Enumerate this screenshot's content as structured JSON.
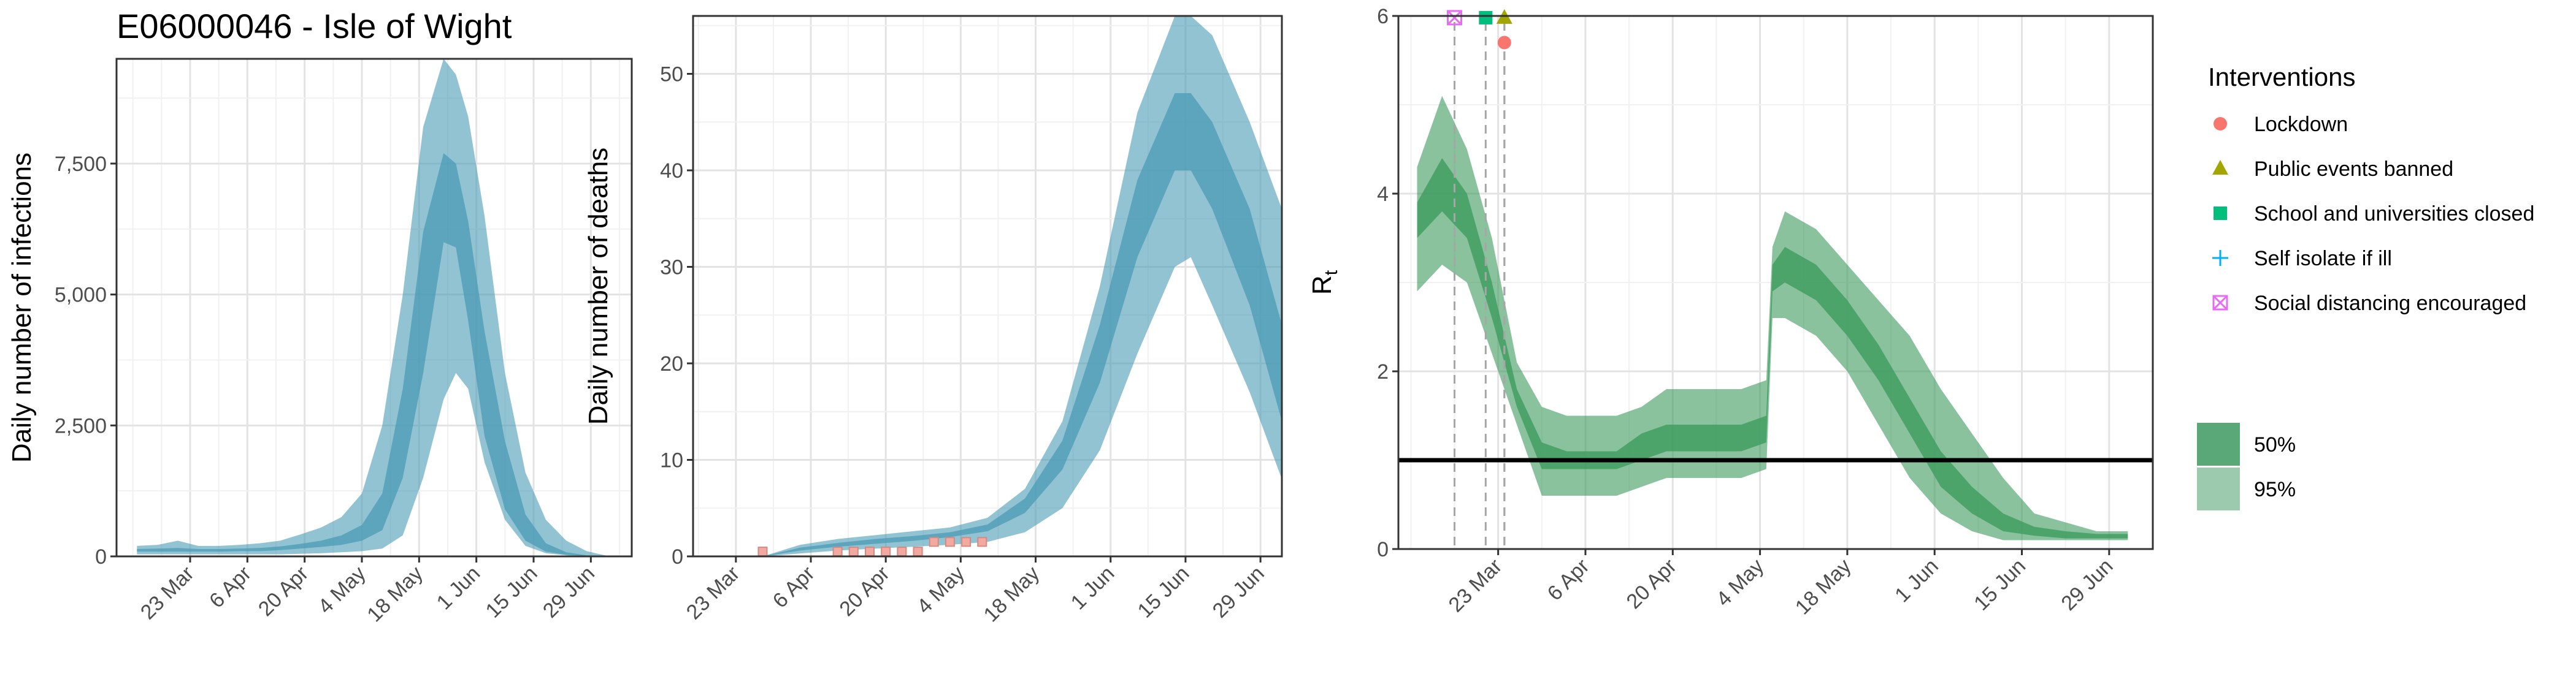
{
  "title": "E06000046 - Isle of Wight",
  "colors": {
    "band_infections": "#4a9bb5",
    "band_r": "#3a9a5b",
    "lockdown": "#f8766d",
    "public_events": "#a3a500",
    "school": "#00bf7d",
    "self_isolate": "#00b0f6",
    "social_distancing": "#e76bf3"
  },
  "chart_data": [
    {
      "type": "area",
      "ylabel": "Daily number of infections",
      "x_ticks": [
        "23 Mar",
        "6 Apr",
        "20 Apr",
        "4 May",
        "18 May",
        "1 Jun",
        "15 Jun",
        "29 Jun"
      ],
      "y_ticks": [
        "0",
        "2,500",
        "5,000",
        "7,500"
      ],
      "ylim": [
        0,
        9500
      ],
      "grid": true,
      "x": [
        "2020-03-10",
        "2020-03-15",
        "2020-03-20",
        "2020-03-25",
        "2020-03-30",
        "2020-04-04",
        "2020-04-09",
        "2020-04-14",
        "2020-04-19",
        "2020-04-24",
        "2020-04-29",
        "2020-05-04",
        "2020-05-09",
        "2020-05-14",
        "2020-05-19",
        "2020-05-24",
        "2020-05-27",
        "2020-05-30",
        "2020-06-03",
        "2020-06-08",
        "2020-06-13",
        "2020-06-18",
        "2020-06-23",
        "2020-06-28",
        "2020-07-03"
      ],
      "series": [
        {
          "interval": "95%",
          "lower": [
            40,
            40,
            40,
            40,
            40,
            40,
            40,
            40,
            50,
            60,
            80,
            100,
            150,
            400,
            1500,
            3000,
            3500,
            3200,
            1800,
            700,
            200,
            60,
            20,
            5,
            0
          ],
          "upper": [
            200,
            220,
            300,
            200,
            200,
            220,
            250,
            300,
            420,
            550,
            750,
            1200,
            2500,
            5000,
            8200,
            9500,
            9200,
            8400,
            6500,
            3500,
            1600,
            700,
            300,
            100,
            10
          ]
        },
        {
          "interval": "50%",
          "lower": [
            90,
            90,
            90,
            90,
            90,
            100,
            100,
            120,
            150,
            180,
            220,
            300,
            500,
            1500,
            3500,
            6000,
            5900,
            4500,
            2300,
            900,
            300,
            90,
            30,
            8,
            0
          ],
          "upper": [
            140,
            150,
            160,
            140,
            140,
            150,
            160,
            190,
            240,
            300,
            400,
            600,
            1200,
            3200,
            6200,
            7700,
            7500,
            6400,
            4300,
            2200,
            800,
            250,
            80,
            20,
            2
          ]
        }
      ]
    },
    {
      "type": "area",
      "ylabel": "Daily number of deaths",
      "x_ticks": [
        "23 Mar",
        "6 Apr",
        "20 Apr",
        "4 May",
        "18 May",
        "1 Jun",
        "15 Jun",
        "29 Jun"
      ],
      "y_ticks": [
        "0",
        "10",
        "20",
        "30",
        "40",
        "50"
      ],
      "ylim": [
        0,
        56
      ],
      "grid": true,
      "x": [
        "2020-03-28",
        "2020-04-04",
        "2020-04-11",
        "2020-04-18",
        "2020-04-25",
        "2020-05-02",
        "2020-05-09",
        "2020-05-16",
        "2020-05-23",
        "2020-05-30",
        "2020-06-06",
        "2020-06-13",
        "2020-06-16",
        "2020-06-20",
        "2020-06-27",
        "2020-07-03"
      ],
      "series": [
        {
          "interval": "95%",
          "lower": [
            0,
            0.3,
            0.6,
            0.8,
            1.0,
            1.2,
            1.5,
            2.5,
            5,
            11,
            21,
            30,
            31,
            26,
            17,
            8
          ],
          "upper": [
            0,
            1.2,
            1.8,
            2.2,
            2.6,
            3,
            4,
            7,
            14,
            28,
            46,
            56,
            56,
            54,
            45,
            36
          ]
        },
        {
          "interval": "50%",
          "lower": [
            0,
            0.6,
            1.0,
            1.3,
            1.6,
            2,
            2.6,
            4.5,
            9,
            18,
            31,
            40,
            40,
            36,
            26,
            14
          ],
          "upper": [
            0,
            0.9,
            1.4,
            1.8,
            2.1,
            2.5,
            3.3,
            6,
            12,
            24,
            39,
            48,
            48,
            45,
            36,
            24
          ]
        }
      ],
      "observed_deaths": [
        {
          "date": "2020-03-28",
          "value": 0.5
        },
        {
          "date": "2020-04-11",
          "value": 0.5
        },
        {
          "date": "2020-04-14",
          "value": 0.5
        },
        {
          "date": "2020-04-17",
          "value": 0.5
        },
        {
          "date": "2020-04-20",
          "value": 0.5
        },
        {
          "date": "2020-04-23",
          "value": 0.5
        },
        {
          "date": "2020-04-26",
          "value": 0.5
        },
        {
          "date": "2020-04-29",
          "value": 1.5
        },
        {
          "date": "2020-05-02",
          "value": 1.5
        },
        {
          "date": "2020-05-05",
          "value": 1.5
        },
        {
          "date": "2020-05-08",
          "value": 1.5
        }
      ]
    },
    {
      "type": "area",
      "ylabel": "R",
      "ylabel_sub": "t",
      "x_ticks": [
        "23 Mar",
        "6 Apr",
        "20 Apr",
        "4 May",
        "18 May",
        "1 Jun",
        "15 Jun",
        "29 Jun"
      ],
      "y_ticks": [
        "0",
        "2",
        "4",
        "6"
      ],
      "ylim": [
        0,
        6
      ],
      "grid": true,
      "reference_line": 1,
      "x": [
        "2020-03-10",
        "2020-03-14",
        "2020-03-18",
        "2020-03-22",
        "2020-03-24",
        "2020-03-26",
        "2020-03-30",
        "2020-04-03",
        "2020-04-07",
        "2020-04-11",
        "2020-04-15",
        "2020-04-19",
        "2020-04-23",
        "2020-04-27",
        "2020-05-01",
        "2020-05-05",
        "2020-05-06",
        "2020-05-08",
        "2020-05-13",
        "2020-05-18",
        "2020-05-23",
        "2020-05-28",
        "2020-06-02",
        "2020-06-07",
        "2020-06-12",
        "2020-06-17",
        "2020-06-22",
        "2020-06-27",
        "2020-07-02"
      ],
      "series": [
        {
          "interval": "95%",
          "lower": [
            2.9,
            3.2,
            3.0,
            2.2,
            1.8,
            1.4,
            0.6,
            0.6,
            0.6,
            0.6,
            0.7,
            0.8,
            0.8,
            0.8,
            0.8,
            0.9,
            2.6,
            2.6,
            2.4,
            2.0,
            1.4,
            0.8,
            0.4,
            0.2,
            0.1,
            0.1,
            0.1,
            0.1,
            0.1
          ],
          "upper": [
            4.3,
            5.1,
            4.5,
            3.5,
            2.8,
            2.1,
            1.6,
            1.5,
            1.5,
            1.5,
            1.6,
            1.8,
            1.8,
            1.8,
            1.8,
            1.9,
            3.4,
            3.8,
            3.6,
            3.2,
            2.8,
            2.4,
            1.8,
            1.3,
            0.8,
            0.4,
            0.3,
            0.2,
            0.2
          ]
        },
        {
          "interval": "50%",
          "lower": [
            3.5,
            3.8,
            3.5,
            2.6,
            2.1,
            1.6,
            0.9,
            0.9,
            0.9,
            0.9,
            1.0,
            1.1,
            1.1,
            1.1,
            1.1,
            1.2,
            2.9,
            3.0,
            2.8,
            2.4,
            1.9,
            1.3,
            0.7,
            0.4,
            0.2,
            0.15,
            0.12,
            0.12,
            0.12
          ],
          "upper": [
            3.9,
            4.4,
            4.0,
            3.0,
            2.4,
            1.8,
            1.2,
            1.1,
            1.1,
            1.1,
            1.3,
            1.4,
            1.4,
            1.4,
            1.4,
            1.5,
            3.2,
            3.4,
            3.2,
            2.8,
            2.3,
            1.7,
            1.1,
            0.7,
            0.4,
            0.25,
            0.2,
            0.17,
            0.17
          ]
        }
      ],
      "interventions": [
        {
          "name": "Social distancing encouraged",
          "date": "2020-03-16",
          "marker": "square-x"
        },
        {
          "name": "School and universities closed",
          "date": "2020-03-21",
          "marker": "square"
        },
        {
          "name": "Public events banned",
          "date": "2020-03-24",
          "marker": "triangle"
        },
        {
          "name": "Lockdown",
          "date": "2020-03-24",
          "marker": "circle"
        }
      ]
    }
  ],
  "legend": {
    "title": "Interventions",
    "items": [
      {
        "label": "Lockdown",
        "marker": "circle",
        "color": "#f8766d"
      },
      {
        "label": "Public events banned",
        "marker": "triangle",
        "color": "#a3a500"
      },
      {
        "label": "School and universities closed",
        "marker": "square",
        "color": "#00bf7d"
      },
      {
        "label": "Self isolate if ill",
        "marker": "plus",
        "color": "#00b0f6"
      },
      {
        "label": "Social distancing encouraged",
        "marker": "square-x",
        "color": "#e76bf3"
      }
    ],
    "ci_items": [
      {
        "label": "50%",
        "color": "#5aa878"
      },
      {
        "label": "95%",
        "color": "#9ccaae"
      }
    ]
  }
}
